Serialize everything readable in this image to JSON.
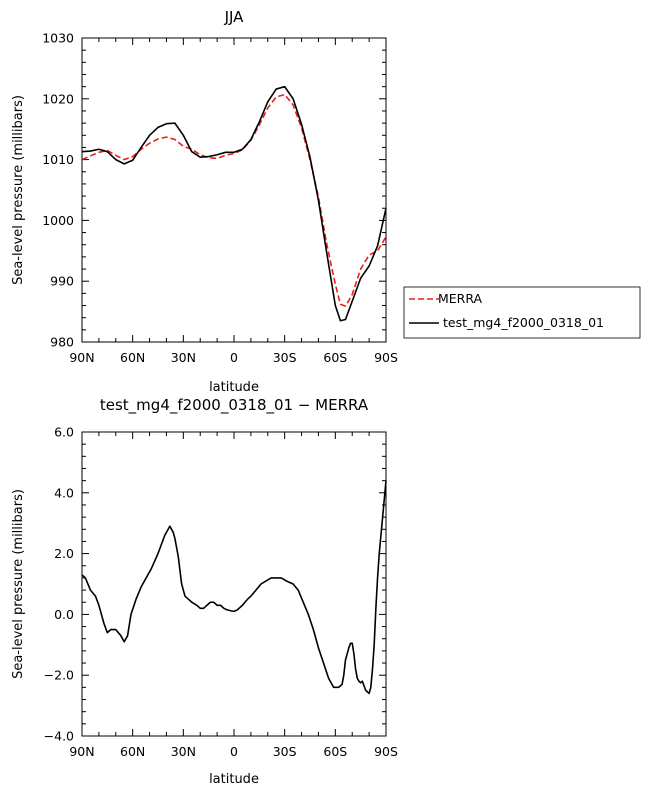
{
  "chart_data": [
    {
      "type": "line",
      "title": "JJA",
      "xlabel": "latitude",
      "ylabel": "Sea-level pressure (millibars)",
      "xlim": [
        90,
        -90
      ],
      "ylim": [
        980,
        1030
      ],
      "xticks": [
        90,
        60,
        30,
        0,
        -30,
        -60,
        -90
      ],
      "xtick_labels": [
        "90N",
        "60N",
        "30N",
        "0",
        "30S",
        "60S",
        "90S"
      ],
      "yticks": [
        980,
        990,
        1000,
        1010,
        1020,
        1030
      ],
      "ytick_labels": [
        "980",
        "990",
        "1000",
        "1010",
        "1020",
        "1030"
      ],
      "legend_position": "right",
      "series": [
        {
          "name": "MERRA",
          "color": "#e8201a",
          "dash": "dashed",
          "x": [
            90,
            85,
            80,
            75,
            70,
            65,
            60,
            55,
            50,
            45,
            40,
            35,
            30,
            25,
            20,
            15,
            10,
            5,
            0,
            -5,
            -10,
            -15,
            -20,
            -25,
            -30,
            -35,
            -40,
            -45,
            -50,
            -55,
            -60,
            -63,
            -66,
            -70,
            -75,
            -80,
            -85,
            -90
          ],
          "y": [
            1010.0,
            1010.6,
            1011.2,
            1011.5,
            1010.7,
            1010.0,
            1010.5,
            1011.7,
            1012.7,
            1013.4,
            1013.7,
            1013.3,
            1012.2,
            1011.7,
            1010.8,
            1010.3,
            1010.2,
            1010.7,
            1011.0,
            1011.6,
            1013.2,
            1015.7,
            1018.5,
            1020.3,
            1020.7,
            1019.0,
            1015.2,
            1010.0,
            1003.8,
            996.0,
            989.5,
            986.2,
            985.9,
            987.8,
            992.0,
            994.3,
            995.0,
            997.3
          ]
        },
        {
          "name": "test_mg4_f2000_0318_01",
          "color": "#000000",
          "dash": "solid",
          "x": [
            90,
            85,
            80,
            75,
            70,
            65,
            60,
            55,
            50,
            45,
            40,
            35,
            30,
            25,
            20,
            15,
            10,
            5,
            0,
            -5,
            -10,
            -15,
            -20,
            -25,
            -30,
            -35,
            -40,
            -45,
            -50,
            -55,
            -60,
            -63,
            -66,
            -70,
            -75,
            -80,
            -85,
            -90
          ],
          "y": [
            1011.3,
            1011.4,
            1011.7,
            1011.3,
            1010.0,
            1009.3,
            1009.9,
            1012.0,
            1014.0,
            1015.3,
            1015.9,
            1016.0,
            1014.0,
            1011.3,
            1010.4,
            1010.5,
            1010.8,
            1011.2,
            1011.2,
            1011.7,
            1013.3,
            1016.2,
            1019.5,
            1021.6,
            1022.0,
            1020.0,
            1015.8,
            1010.4,
            1003.3,
            994.5,
            986.0,
            983.5,
            983.7,
            986.7,
            990.5,
            992.5,
            995.8,
            1002.0
          ]
        }
      ]
    },
    {
      "type": "line",
      "title": "test_mg4_f2000_0318_01 − MERRA",
      "xlabel": "latitude",
      "ylabel": "Sea-level pressure (millibars)",
      "xlim": [
        90,
        -90
      ],
      "ylim": [
        -4,
        6
      ],
      "xticks": [
        90,
        60,
        30,
        0,
        -30,
        -60,
        -90
      ],
      "xtick_labels": [
        "90N",
        "60N",
        "30N",
        "0",
        "30S",
        "60S",
        "90S"
      ],
      "yticks": [
        -4,
        -2,
        0,
        2,
        4,
        6
      ],
      "ytick_labels": [
        "−4.0",
        "−2.0",
        "0.0",
        "2.0",
        "4.0",
        "6.0"
      ],
      "series": [
        {
          "color": "#000000",
          "dash": "solid",
          "x": [
            90,
            88,
            85,
            82,
            80,
            77,
            75,
            73,
            70,
            67,
            65,
            63,
            61,
            58,
            55,
            52,
            49,
            45,
            41,
            38,
            36,
            35,
            33,
            31,
            29,
            27,
            25,
            22,
            20,
            18,
            16,
            14,
            12,
            10,
            8,
            6,
            4,
            2,
            0,
            -2,
            -5,
            -8,
            -10,
            -13,
            -16,
            -19,
            -22,
            -25,
            -28,
            -31,
            -35,
            -38,
            -41,
            -44,
            -47,
            -50,
            -53,
            -56,
            -59,
            -62,
            -64,
            -65,
            -66,
            -68,
            -69,
            -70,
            -71,
            -72,
            -73,
            -74,
            -75,
            -76,
            -78,
            -80,
            -81,
            -82,
            -83,
            -84,
            -85,
            -86,
            -88,
            -90
          ],
          "y": [
            1.3,
            1.2,
            0.8,
            0.6,
            0.3,
            -0.3,
            -0.6,
            -0.5,
            -0.5,
            -0.7,
            -0.9,
            -0.7,
            0.0,
            0.5,
            0.9,
            1.2,
            1.5,
            2.0,
            2.6,
            2.9,
            2.7,
            2.5,
            1.9,
            1.0,
            0.6,
            0.5,
            0.4,
            0.3,
            0.2,
            0.2,
            0.3,
            0.4,
            0.4,
            0.3,
            0.3,
            0.2,
            0.15,
            0.12,
            0.1,
            0.15,
            0.3,
            0.5,
            0.6,
            0.8,
            1.0,
            1.1,
            1.2,
            1.2,
            1.2,
            1.1,
            1.0,
            0.8,
            0.4,
            0.0,
            -0.5,
            -1.1,
            -1.6,
            -2.1,
            -2.4,
            -2.4,
            -2.3,
            -2.0,
            -1.5,
            -1.1,
            -0.95,
            -0.95,
            -1.3,
            -1.8,
            -2.1,
            -2.2,
            -2.25,
            -2.2,
            -2.5,
            -2.6,
            -2.4,
            -1.8,
            -1.0,
            0.2,
            1.2,
            2.0,
            3.2,
            4.4
          ]
        }
      ]
    }
  ]
}
